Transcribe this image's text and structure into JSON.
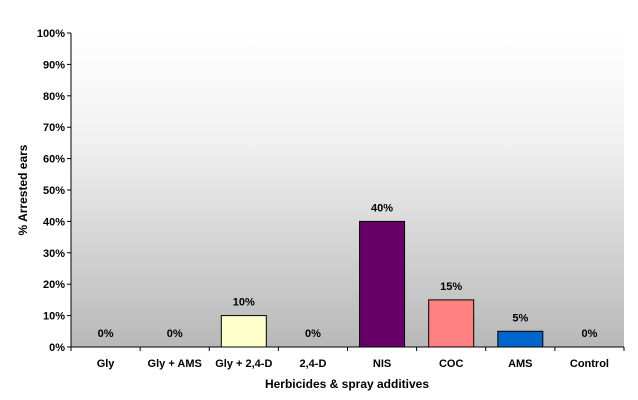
{
  "chart_data": {
    "type": "bar",
    "title": "",
    "xlabel": "Herbicides & spray additives",
    "ylabel": "% Arrested ears",
    "ylim": [
      0,
      100
    ],
    "yticks": [
      "0%",
      "10%",
      "20%",
      "30%",
      "40%",
      "50%",
      "60%",
      "70%",
      "80%",
      "90%",
      "100%"
    ],
    "categories": [
      "Gly",
      "Gly + AMS",
      "Gly + 2,4-D",
      "2,4-D",
      "NIS",
      "COC",
      "AMS",
      "Control"
    ],
    "values": [
      0,
      0,
      10,
      0,
      40,
      15,
      5,
      0
    ],
    "data_labels": [
      "0%",
      "0%",
      "10%",
      "0%",
      "40%",
      "15%",
      "5%",
      "0%"
    ],
    "bar_colors": [
      "#ffffcc",
      "#ffffcc",
      "#ffffcc",
      "#ffffcc",
      "#660066",
      "#ff8080",
      "#0066cc",
      "#ffffcc"
    ],
    "grid": false,
    "legend": "none",
    "plot_background": "gradient gray-to-white"
  }
}
